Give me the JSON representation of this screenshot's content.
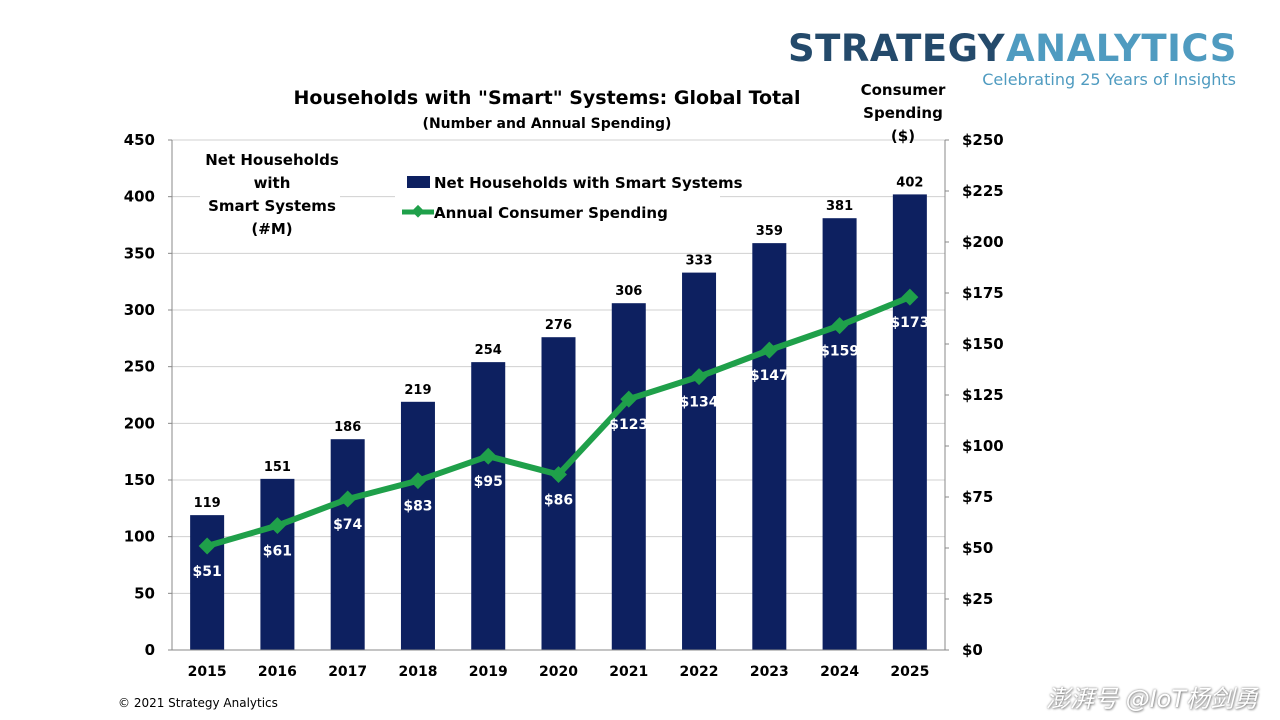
{
  "logo": {
    "brand_part1": "STRATEGY",
    "brand_part2": "ANALYTICS",
    "tagline": "Celebrating 25 Years of Insights",
    "color1": "#244a6b",
    "color2": "#4f9bc0"
  },
  "copyright": "© 2021 Strategy Analytics",
  "watermark": "澎湃号 @IoT杨剑勇",
  "chart_data": {
    "type": "bar+line",
    "title": "Households with \"Smart\" Systems: Global Total",
    "subtitle": "(Number and Annual Spending)",
    "categories": [
      "2015",
      "2016",
      "2017",
      "2018",
      "2019",
      "2020",
      "2021",
      "2022",
      "2023",
      "2024",
      "2025"
    ],
    "left_axis": {
      "label_lines": [
        "Net Households",
        "with",
        "Smart Systems",
        "(#M)"
      ],
      "ylim": [
        0,
        450
      ],
      "ticks": [
        "0",
        "50",
        "100",
        "150",
        "200",
        "250",
        "300",
        "350",
        "400",
        "450"
      ]
    },
    "right_axis": {
      "label_lines": [
        "Consumer",
        "Spending",
        "($)"
      ],
      "ylim": [
        0,
        250
      ],
      "ticks": [
        "$0",
        "$25",
        "$50",
        "$75",
        "$100",
        "$125",
        "$150",
        "$175",
        "$200",
        "$225",
        "$250"
      ]
    },
    "grid": true,
    "legend": "top-center",
    "series": [
      {
        "name": "Net Households with Smart Systems",
        "type": "bar",
        "axis": "left",
        "color": "#0d2060",
        "values": [
          119,
          151,
          186,
          219,
          254,
          276,
          306,
          333,
          359,
          381,
          402
        ],
        "labels": [
          "119",
          "151",
          "186",
          "219",
          "254",
          "276",
          "306",
          "333",
          "359",
          "381",
          "402"
        ]
      },
      {
        "name": "Annual Consumer Spending",
        "type": "line",
        "axis": "right",
        "color": "#1fa04a",
        "values": [
          51,
          61,
          74,
          83,
          95,
          86,
          123,
          134,
          147,
          159,
          173
        ],
        "labels": [
          "$51",
          "$61",
          "$74",
          "$83",
          "$95",
          "$86",
          "$123",
          "$134",
          "$147",
          "$159",
          "$173"
        ]
      }
    ]
  }
}
